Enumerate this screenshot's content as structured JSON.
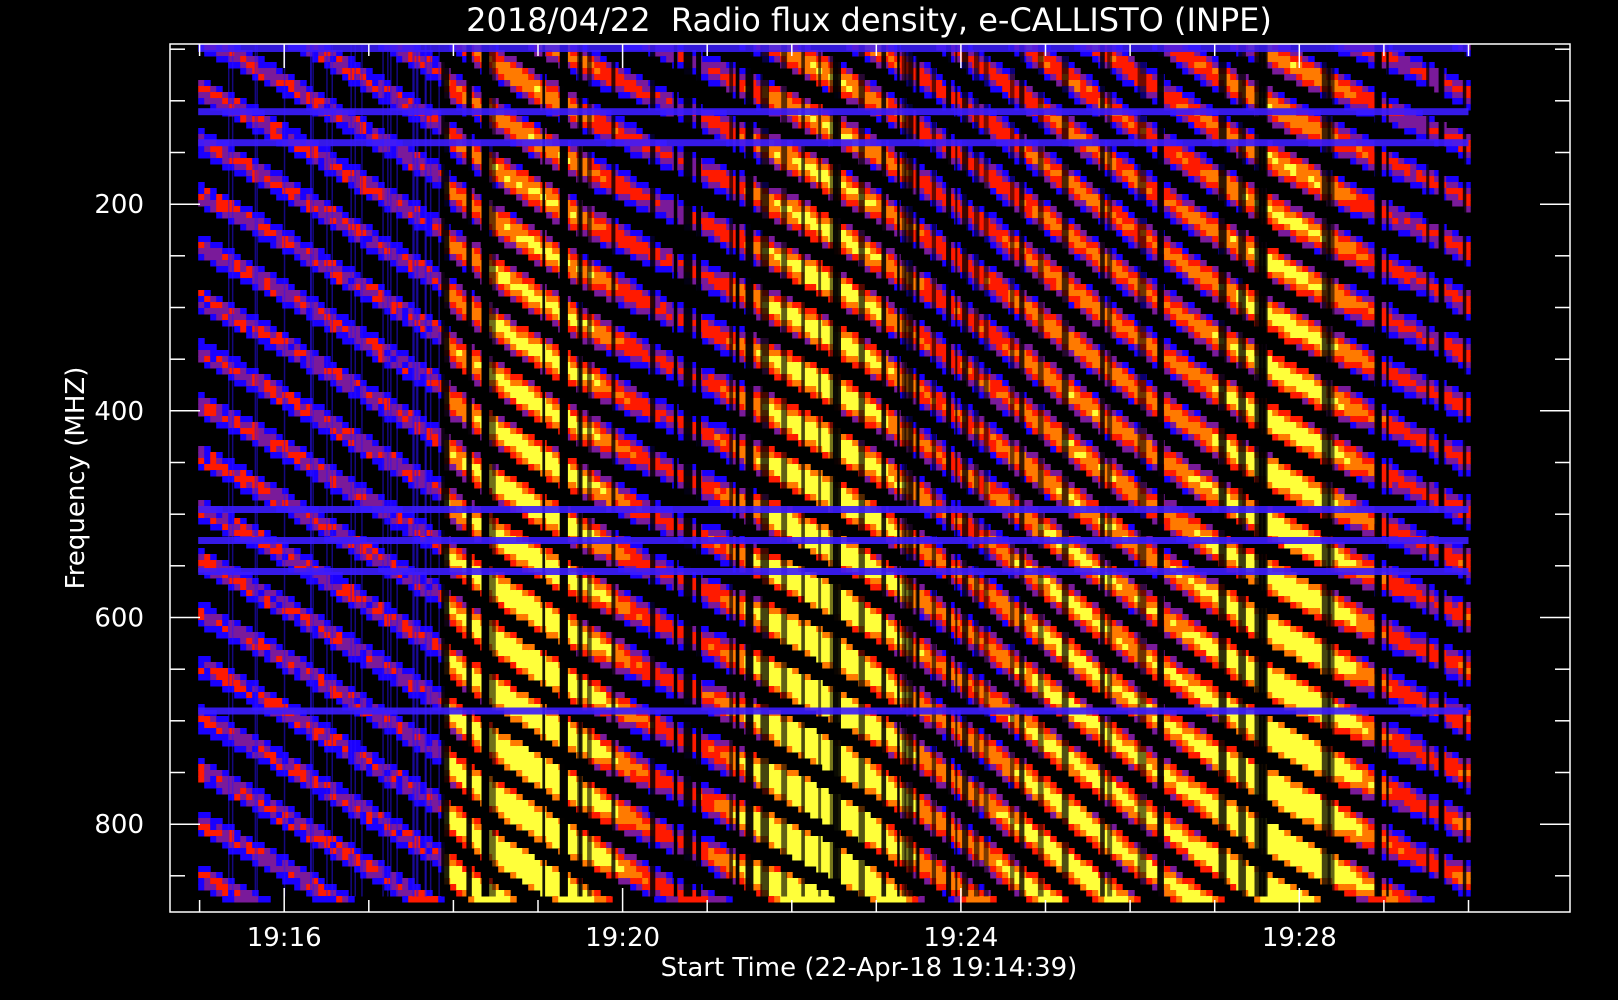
{
  "chart_data": {
    "type": "heatmap",
    "title": "2018/04/22  Radio flux density, e-CALLISTO (INPE)",
    "xlabel": "Start Time (22-Apr-18 19:14:39)",
    "ylabel": "Frequency (MHZ)",
    "x_range": [
      "19:14:39",
      "19:31:12"
    ],
    "y_range": [
      45,
      885
    ],
    "y_inverted": true,
    "x_major_ticks": [
      {
        "value": "19:16",
        "label": "19:16"
      },
      {
        "value": "19:20",
        "label": "19:20"
      },
      {
        "value": "19:24",
        "label": "19:24"
      },
      {
        "value": "19:28",
        "label": "19:28"
      }
    ],
    "x_minor_ticks": [
      "19:15",
      "19:17",
      "19:18",
      "19:19",
      "19:21",
      "19:22",
      "19:23",
      "19:25",
      "19:26",
      "19:27",
      "19:29",
      "19:30"
    ],
    "y_major_ticks": [
      {
        "value": 200,
        "label": "200"
      },
      {
        "value": 400,
        "label": "400"
      },
      {
        "value": 600,
        "label": "600"
      },
      {
        "value": 800,
        "label": "800"
      }
    ],
    "y_minor_ticks": [
      50,
      100,
      150,
      250,
      300,
      350,
      450,
      500,
      550,
      650,
      700,
      750,
      850
    ],
    "data_extent": {
      "t_start": "19:14:59",
      "t_end": "19:30:00",
      "f_min": 45,
      "f_max": 870
    },
    "burst_onset": "19:17:50",
    "colormap": [
      "#000000",
      "#1a00ff",
      "#7a1a9a",
      "#ff1a00",
      "#ff7a00",
      "#ffff3a"
    ],
    "horizontal_rfi_lines_mhz": [
      110,
      140,
      495,
      525,
      555,
      690
    ],
    "grid": false,
    "legend": "none"
  }
}
